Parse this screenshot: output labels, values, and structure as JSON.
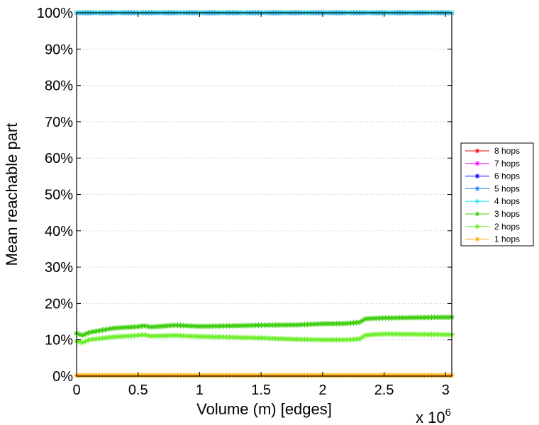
{
  "chart_data": {
    "type": "line",
    "xlabel": "Volume (m) [edges]",
    "ylabel": "Mean reachable part",
    "x_multiplier_label": "x 10",
    "x_multiplier_exponent": "6",
    "xlim": [
      0,
      3.05
    ],
    "ylim": [
      0,
      100
    ],
    "x_ticks": [
      0,
      0.5,
      1,
      1.5,
      2,
      2.5,
      3
    ],
    "x_tick_labels": [
      "0",
      "0.5",
      "1",
      "1.5",
      "2",
      "2.5",
      "3"
    ],
    "y_ticks": [
      0,
      10,
      20,
      30,
      40,
      50,
      60,
      70,
      80,
      90,
      100
    ],
    "y_tick_labels": [
      "0%",
      "10%",
      "20%",
      "30%",
      "40%",
      "50%",
      "60%",
      "70%",
      "80%",
      "90%",
      "100%"
    ],
    "grid": "horizontal dotted",
    "legend_position": "right",
    "series": [
      {
        "name": "8 hops",
        "color": "#ff0000",
        "x": [
          0,
          3.05
        ],
        "y": [
          100,
          100
        ]
      },
      {
        "name": "7 hops",
        "color": "#ff00ff",
        "x": [
          0,
          3.05
        ],
        "y": [
          100,
          100
        ]
      },
      {
        "name": "6 hops",
        "color": "#0000ff",
        "x": [
          0,
          3.05
        ],
        "y": [
          100,
          100
        ]
      },
      {
        "name": "5 hops",
        "color": "#1e7fff",
        "x": [
          0,
          3.05
        ],
        "y": [
          100,
          100
        ]
      },
      {
        "name": "4 hops",
        "color": "#33e6e6",
        "x": [
          0,
          3.05
        ],
        "y": [
          100,
          100
        ]
      },
      {
        "name": "3 hops",
        "color": "#33cc00",
        "x": [
          0,
          0.05,
          0.1,
          0.2,
          0.3,
          0.5,
          0.55,
          0.6,
          0.8,
          1.0,
          1.2,
          1.5,
          1.8,
          2.0,
          2.2,
          2.3,
          2.35,
          2.5,
          3.05
        ],
        "y": [
          11.8,
          11.2,
          12.0,
          12.6,
          13.2,
          13.6,
          13.9,
          13.5,
          14.0,
          13.7,
          13.8,
          14.0,
          14.1,
          14.4,
          14.5,
          14.8,
          15.8,
          16.0,
          16.2
        ]
      },
      {
        "name": "2 hops",
        "color": "#66ee22",
        "x": [
          0,
          0.05,
          0.1,
          0.2,
          0.3,
          0.5,
          0.55,
          0.6,
          0.8,
          1.0,
          1.5,
          1.8,
          2.0,
          2.2,
          2.3,
          2.35,
          2.5,
          3.05
        ],
        "y": [
          9.6,
          9.2,
          10.0,
          10.4,
          10.8,
          11.2,
          11.4,
          11.0,
          11.2,
          10.9,
          10.5,
          10.1,
          10.0,
          10.0,
          10.2,
          11.3,
          11.6,
          11.4
        ]
      },
      {
        "name": "1 hops",
        "color": "#ffaa00",
        "x": [
          0,
          3.05
        ],
        "y": [
          0.2,
          0.2
        ]
      }
    ]
  }
}
